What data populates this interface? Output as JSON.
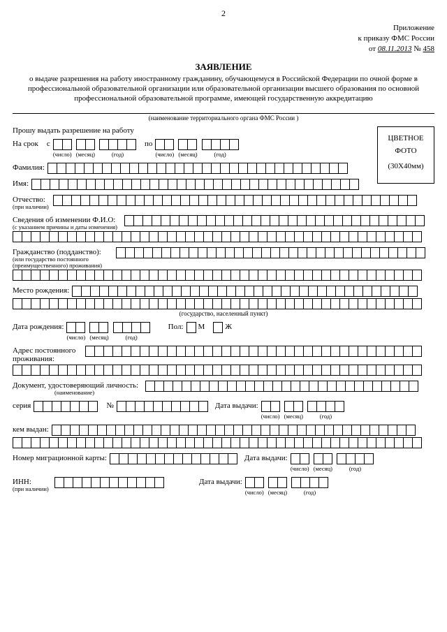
{
  "page_number": "2",
  "appendix": {
    "line1": "Приложение",
    "line2": "к приказу ФМС России",
    "from": "от",
    "date": "08.11.2013",
    "num_label": "№",
    "num": " 458 "
  },
  "title": "ЗАЯВЛЕНИЕ",
  "subtitle": "о выдаче разрешения на работу иностранному гражданину, обучающемуся в Российской Федерации по очной форме в профессиональной образовательной организации или образовательной организации высшего образования по основной профессиональной образовательной программе, имеющей государственную аккредитацию",
  "org_hint": "(наименование территориального органа ФМС России )",
  "request_line": "Прошу выдать разрешение на работу",
  "term": {
    "label": "На срок",
    "from": "с",
    "to": "по"
  },
  "date_parts": {
    "d": "(число)",
    "m": "(месяц)",
    "y": "(год)"
  },
  "photo": {
    "l1": "ЦВЕТНОЕ",
    "l2": "ФОТО",
    "l3": "(30X40мм)"
  },
  "surname": "Фамилия:",
  "name": "Имя:",
  "patronymic": {
    "label": "Отчество:",
    "hint": "(при наличии)"
  },
  "fio_change": {
    "label": "Сведения об изменении Ф.И.О:",
    "hint": "(с указанием причины и даты изменения)"
  },
  "citizenship": {
    "label": "Гражданство (подданство):",
    "hint1": "(или государство постоянного",
    "hint2": "(преимущественного) проживания)"
  },
  "birthplace": {
    "label": "Место рождения:",
    "hint": "(государство, населенный пункт)"
  },
  "birthdate": "Дата рождения:",
  "sex": {
    "label": "Пол:",
    "m": "М",
    "f": "Ж"
  },
  "address": {
    "l1": "Адрес постоянного",
    "l2": "проживания:"
  },
  "id_doc": {
    "label": "Документ, удостоверяющий личность:",
    "hint": "(наименование)"
  },
  "series": "серия",
  "number": "№",
  "issue_date": "Дата выдачи:",
  "issued_by": "кем выдан:",
  "migr_card": "Номер миграционной карты:",
  "inn": {
    "label": "ИНН:",
    "hint": "(при наличии)"
  }
}
